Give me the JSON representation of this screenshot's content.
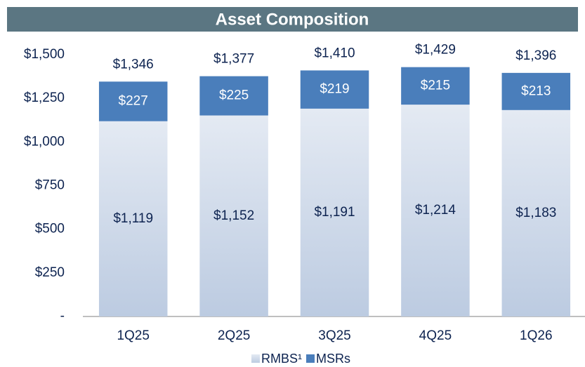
{
  "chart_data": {
    "type": "stacked_bar",
    "title": "Asset Composition",
    "categories": [
      "1Q25",
      "2Q25",
      "3Q25",
      "4Q25",
      "1Q26"
    ],
    "series": [
      {
        "name": "RMBS¹",
        "color": "#bccbe1",
        "values": [
          1119,
          1152,
          1191,
          1214,
          1183
        ],
        "value_labels": [
          "$1,119",
          "$1,152",
          "$1,191",
          "$1,214",
          "$1,183"
        ]
      },
      {
        "name": "MSRs",
        "color": "#4a7ebb",
        "values": [
          227,
          225,
          219,
          215,
          213
        ],
        "value_labels": [
          "$227",
          "$225",
          "$219",
          "$215",
          "$213"
        ]
      }
    ],
    "totals": {
      "values": [
        1346,
        1377,
        1410,
        1429,
        1396
      ],
      "value_labels": [
        "$1,346",
        "$1,377",
        "$1,410",
        "$1,429",
        "$1,396"
      ]
    },
    "ylim": [
      0,
      1500
    ],
    "yticks": [
      {
        "value": 0,
        "label": "-"
      },
      {
        "value": 250,
        "label": "$250"
      },
      {
        "value": 500,
        "label": "$500"
      },
      {
        "value": 750,
        "label": "$750"
      },
      {
        "value": 1000,
        "label": "$1,000"
      },
      {
        "value": 1250,
        "label": "$1,250"
      },
      {
        "value": 1500,
        "label": "$1,500"
      }
    ],
    "legend": "bottom"
  }
}
